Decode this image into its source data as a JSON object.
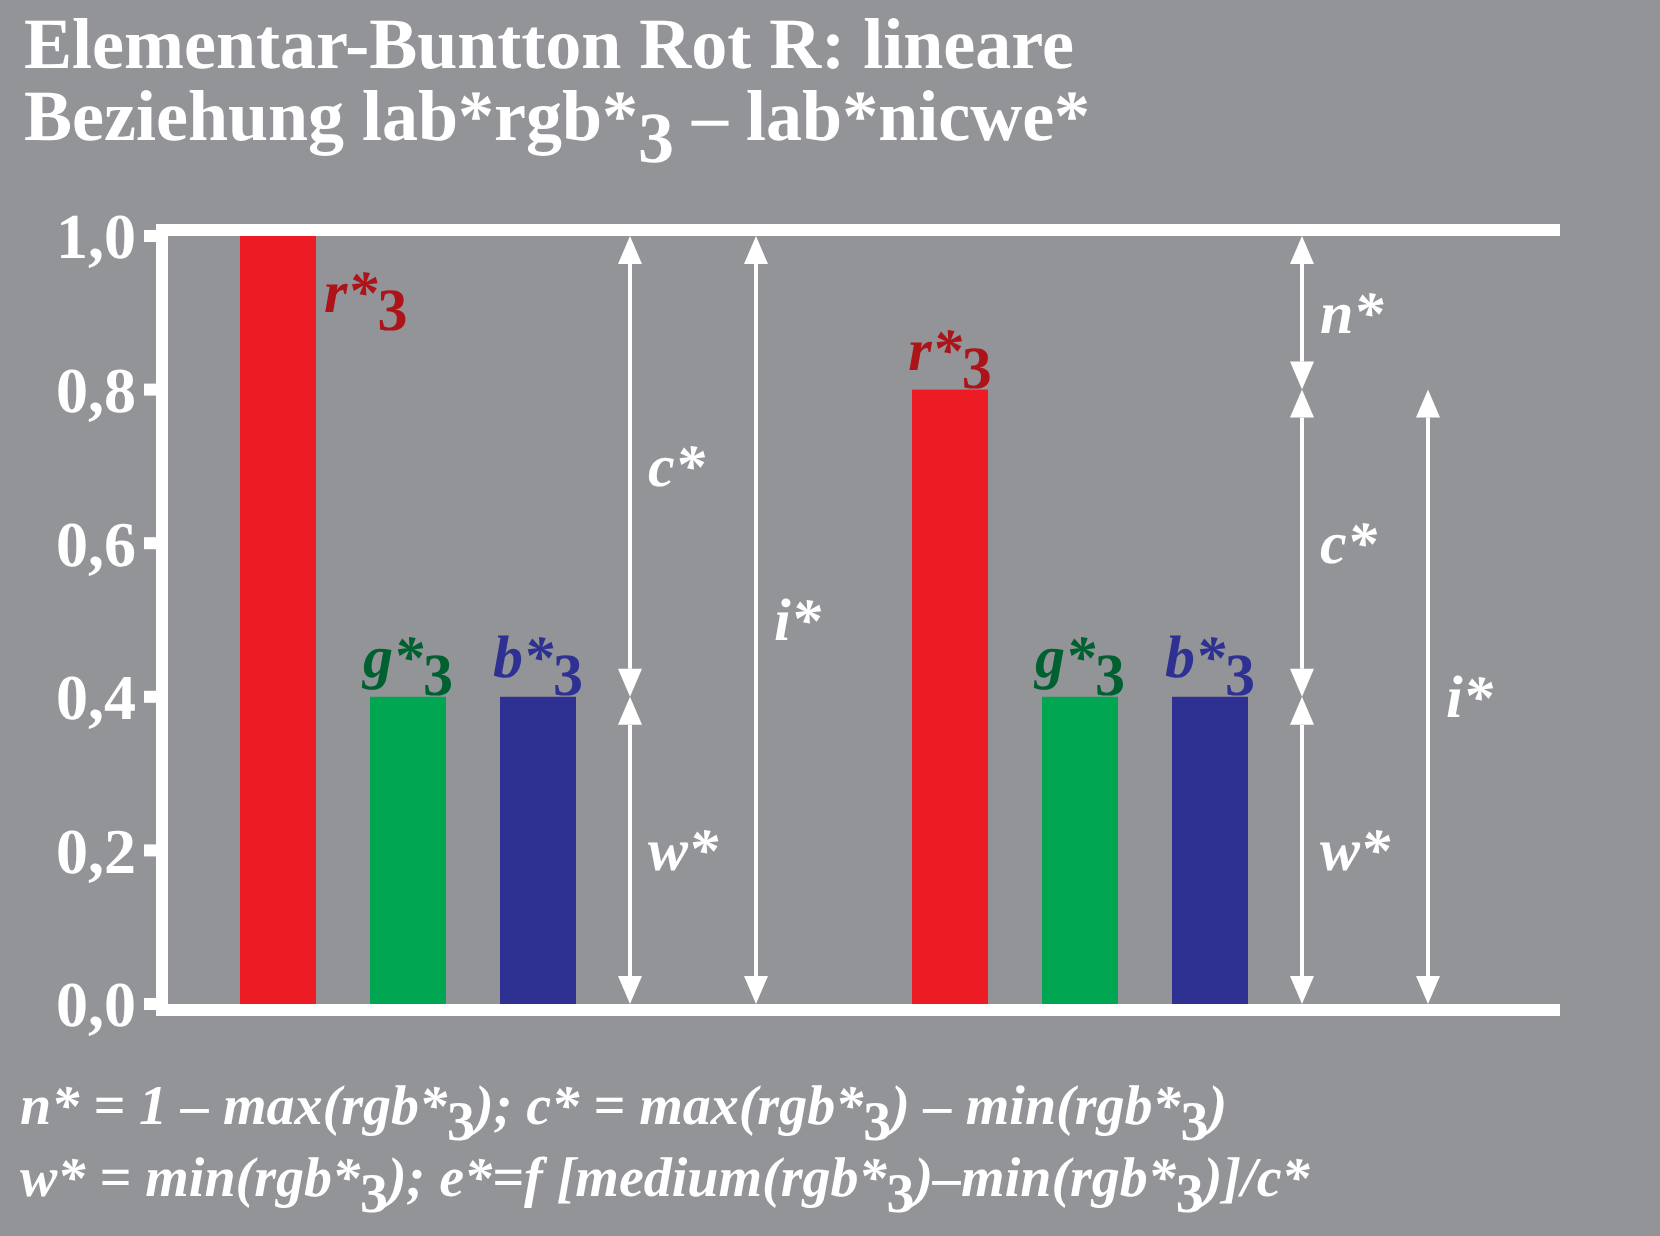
{
  "chart_data": {
    "type": "bar",
    "title": "Elementar-Buntton Rot R: lineare Beziehung lab*rgb*$_{3}$ – lab*nicwe*",
    "categories": [
      null,
      null
    ],
    "series": [
      {
        "name": "r*$_{3}$",
        "color": "#ed1c24",
        "values": [
          1.0,
          0.8
        ]
      },
      {
        "name": "g*$_{3}$",
        "color": "#00a651",
        "values": [
          0.4,
          0.4
        ]
      },
      {
        "name": "b*$_{3}$",
        "color": "#2e3192",
        "values": [
          0.4,
          0.4
        ]
      }
    ],
    "ylim": [
      0,
      1
    ],
    "yticks": [
      {
        "value": 0,
        "label": "0,0"
      },
      {
        "value": 0.2,
        "label": "0,2"
      },
      {
        "value": 0.4,
        "label": "0,4"
      },
      {
        "value": 0.6,
        "label": "0,6"
      },
      {
        "value": 0.8,
        "label": "0,8"
      },
      {
        "value": 1,
        "label": "1,0"
      }
    ],
    "annotations": [
      "c*",
      "w*",
      "i*",
      "n*",
      "c*",
      "w*",
      "i*",
      "n* = 1 – max(rgb*$_{3}$); c* = max(rgb*$_{3}$) – min(rgb*$_{3}$)",
      "w* = min(rgb*$_{3}$); e*=f [medium(rgb*$_{3}$)–min(rgb*$_{3}$)]/c*"
    ]
  }
}
